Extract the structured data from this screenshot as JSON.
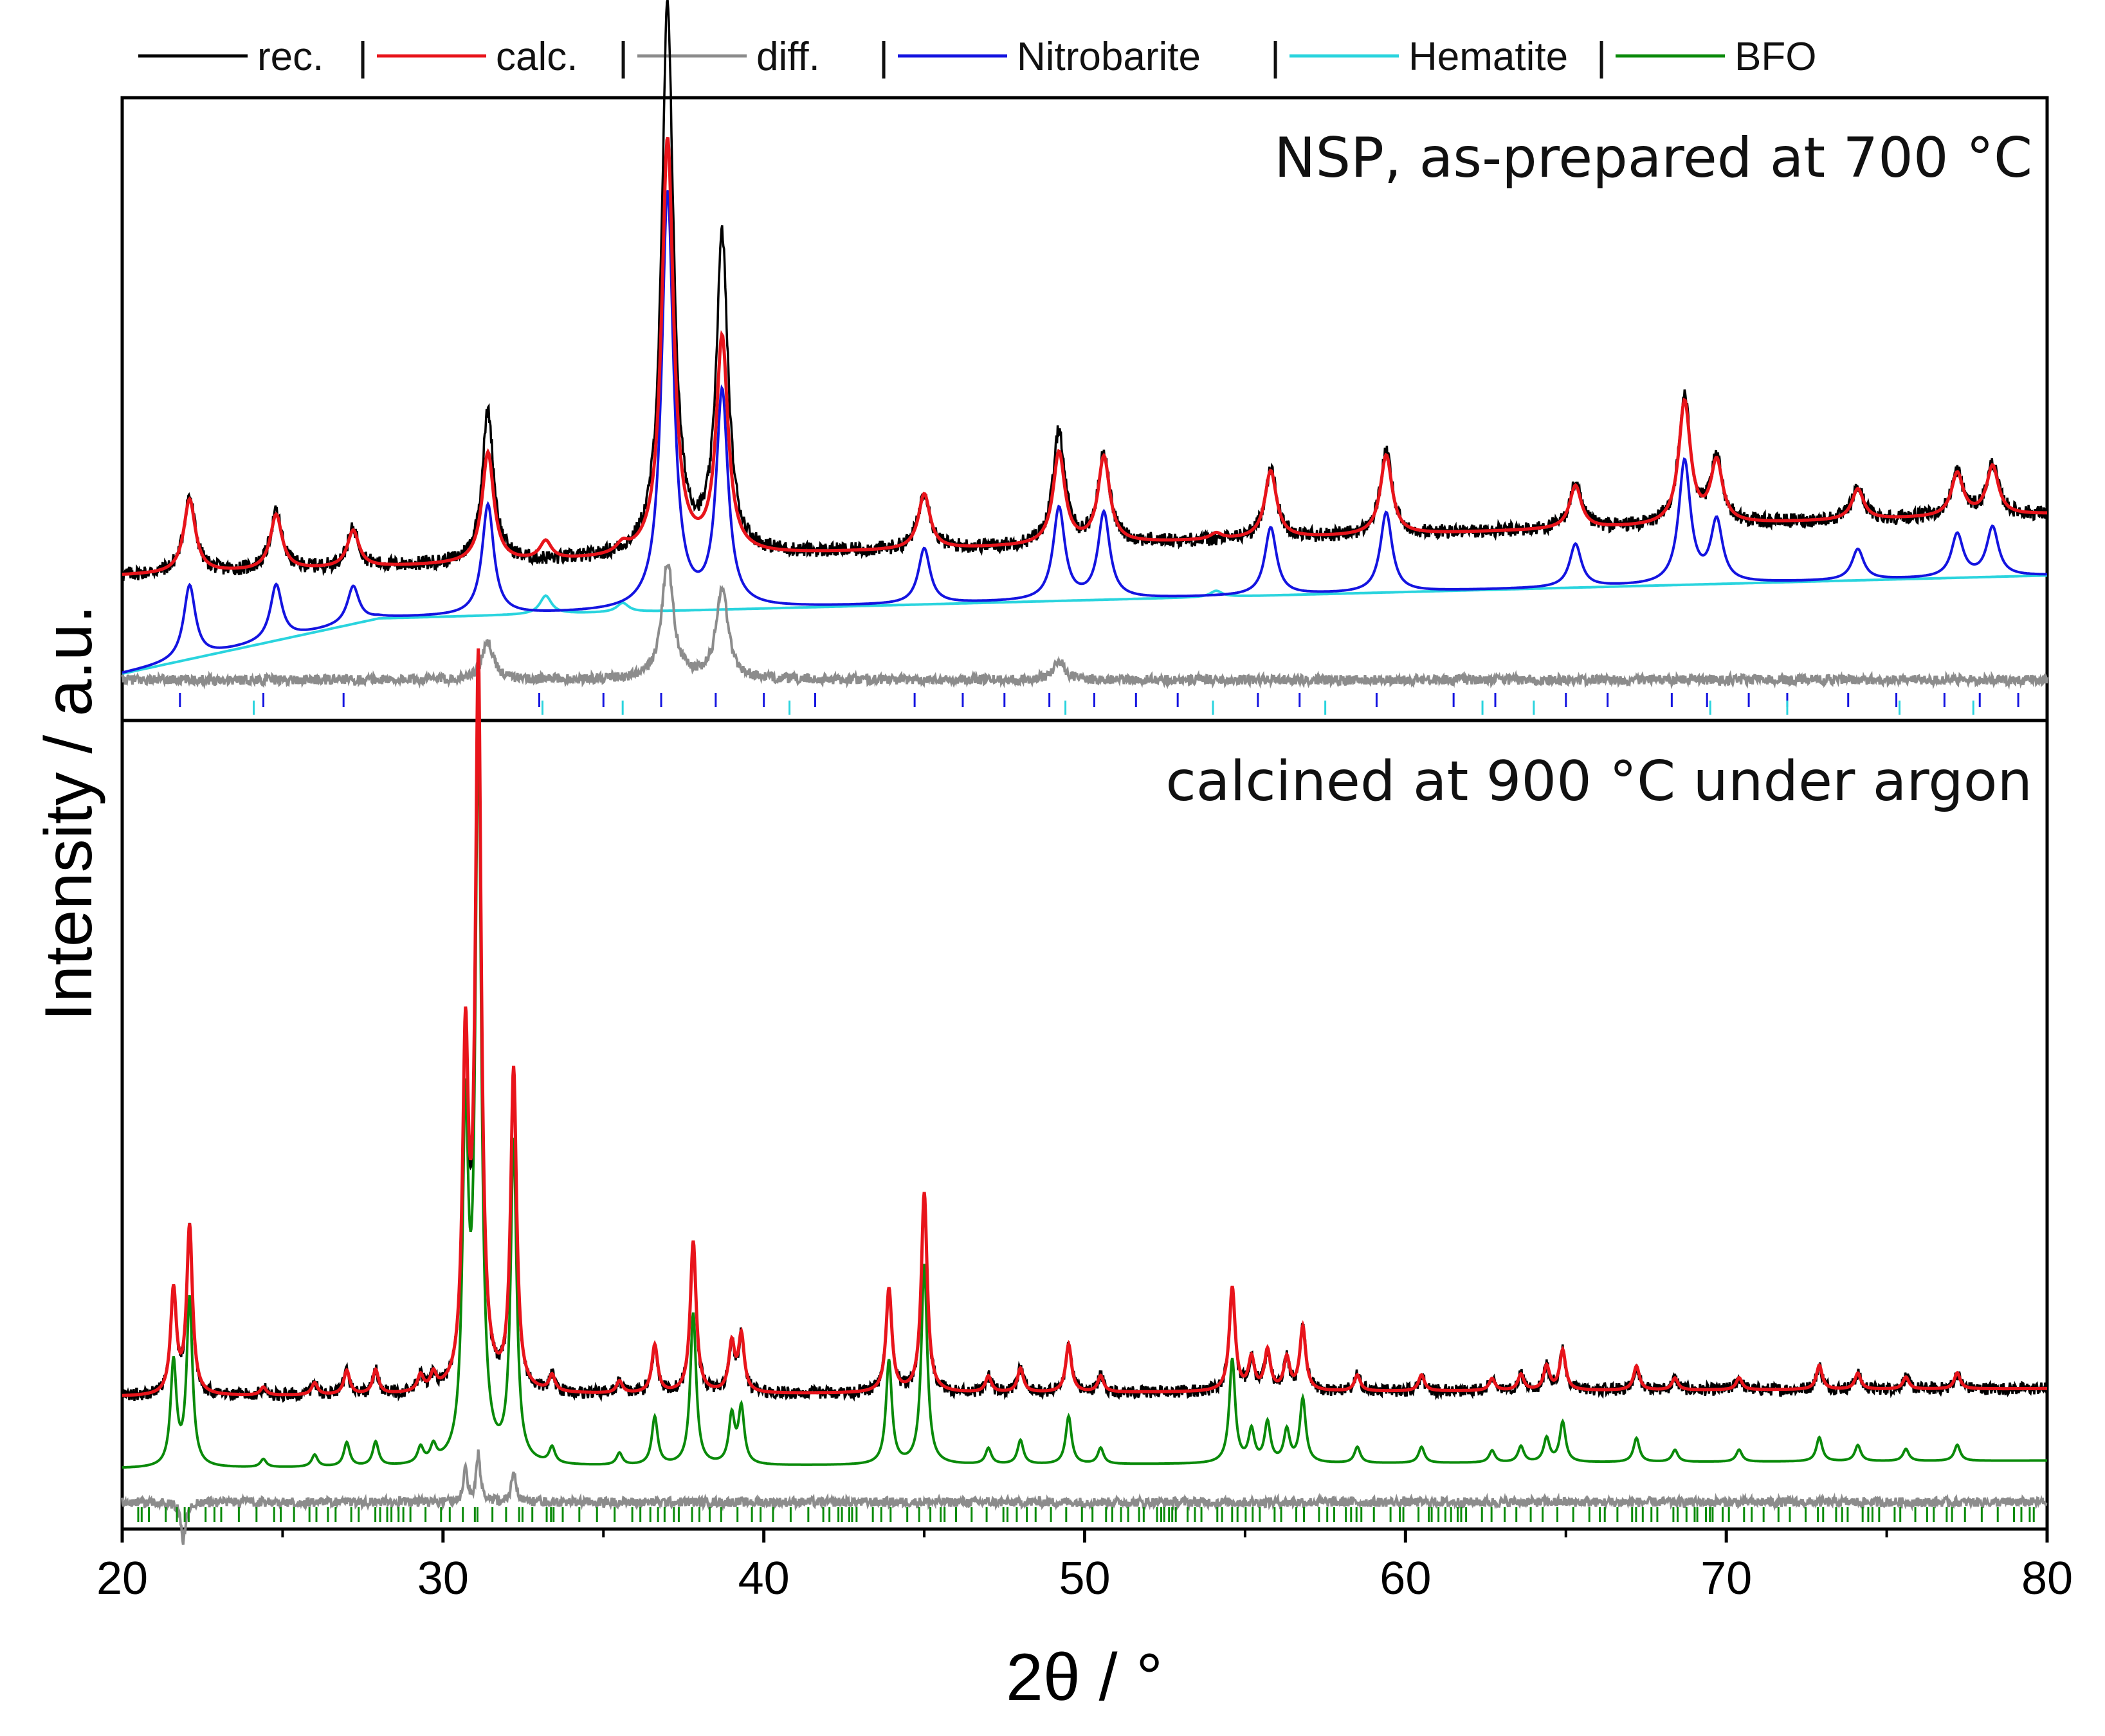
{
  "chart_data": {
    "type": "line",
    "xlabel": "2θ / °",
    "ylabel": "Intensity / a.u.",
    "xlim": [
      20,
      80
    ],
    "xticks": [
      20,
      30,
      40,
      50,
      60,
      70,
      80
    ],
    "legend": {
      "placement": "top",
      "separator": "|",
      "entries": [
        {
          "name": "rec.",
          "color": "#000000"
        },
        {
          "name": "calc.",
          "color": "#e8141b"
        },
        {
          "name": "diff.",
          "color": "#8c8c8c"
        },
        {
          "name": "Nitrobarite",
          "color": "#1414e0"
        },
        {
          "name": "Hematite",
          "color": "#2ad4de"
        },
        {
          "name": "BFO",
          "color": "#0a8a0a"
        }
      ]
    },
    "panels": [
      {
        "annotation": "NSP, as-prepared at 700 °C",
        "series": {
          "calc_baseline": [
            [
              20,
              0.23
            ],
            [
              80,
              0.33
            ]
          ],
          "rec_offset": 0.035,
          "phase_baseline": [
            [
              20,
              0.07
            ],
            [
              28,
              0.16
            ],
            [
              80,
              0.23
            ]
          ],
          "diff_level": 0.06,
          "nitrobarite_peaks": [
            {
              "x": 22.1,
              "h": 0.12
            },
            {
              "x": 24.8,
              "h": 0.09
            },
            {
              "x": 27.2,
              "h": 0.06
            },
            {
              "x": 31.4,
              "h": 0.18
            },
            {
              "x": 37.0,
              "h": 0.68
            },
            {
              "x": 38.7,
              "h": 0.35
            },
            {
              "x": 45.0,
              "h": 0.09
            },
            {
              "x": 49.2,
              "h": 0.15
            },
            {
              "x": 50.6,
              "h": 0.14
            },
            {
              "x": 55.8,
              "h": 0.11
            },
            {
              "x": 59.4,
              "h": 0.13
            },
            {
              "x": 65.3,
              "h": 0.07
            },
            {
              "x": 68.7,
              "h": 0.2
            },
            {
              "x": 69.7,
              "h": 0.1
            },
            {
              "x": 74.1,
              "h": 0.05
            },
            {
              "x": 77.2,
              "h": 0.07
            },
            {
              "x": 78.3,
              "h": 0.08
            }
          ],
          "hematite_peaks": [
            {
              "x": 33.2,
              "h": 0.03
            },
            {
              "x": 35.6,
              "h": 0.015
            },
            {
              "x": 54.1,
              "h": 0.01
            }
          ],
          "diff_peaks": [
            {
              "x": 31.4,
              "h": 0.06
            },
            {
              "x": 37.0,
              "h": 0.19
            },
            {
              "x": 38.7,
              "h": 0.15
            },
            {
              "x": 49.2,
              "h": 0.03
            }
          ],
          "nitrobarite_ticks": [
            21.8,
            24.4,
            26.9,
            31.1,
            33.0,
            35.0,
            36.8,
            38.5,
            40.0,
            41.6,
            44.7,
            46.2,
            47.5,
            48.9,
            50.3,
            51.6,
            52.9,
            55.4,
            56.7,
            59.1,
            61.5,
            62.8,
            65.0,
            66.3,
            68.3,
            69.4,
            70.7,
            71.9,
            73.8,
            75.3,
            76.8,
            77.9,
            79.1
          ],
          "hematite_ticks": [
            24.1,
            33.1,
            35.6,
            40.8,
            49.4,
            54.0,
            57.5,
            62.4,
            64.0,
            69.5,
            71.9,
            75.4,
            77.7
          ]
        }
      },
      {
        "annotation": "calcined at 900 °C under argon",
        "series": {
          "calc_baseline": [
            [
              20,
              0.16
            ],
            [
              80,
              0.17
            ]
          ],
          "rec_offset": 0.0,
          "phase_baseline": [
            [
              20,
              0.07
            ],
            [
              80,
              0.08
            ]
          ],
          "diff_level": 0.028,
          "bfo_peaks": [
            {
              "x": 21.6,
              "h": 0.13
            },
            {
              "x": 22.1,
              "h": 0.21
            },
            {
              "x": 24.4,
              "h": 0.01
            },
            {
              "x": 26.0,
              "h": 0.015
            },
            {
              "x": 27.0,
              "h": 0.03
            },
            {
              "x": 27.9,
              "h": 0.03
            },
            {
              "x": 29.3,
              "h": 0.02
            },
            {
              "x": 29.7,
              "h": 0.02
            },
            {
              "x": 30.7,
              "h": 0.42
            },
            {
              "x": 31.1,
              "h": 0.9
            },
            {
              "x": 32.2,
              "h": 0.4
            },
            {
              "x": 33.4,
              "h": 0.02
            },
            {
              "x": 35.5,
              "h": 0.015
            },
            {
              "x": 36.6,
              "h": 0.06
            },
            {
              "x": 37.8,
              "h": 0.19
            },
            {
              "x": 39.0,
              "h": 0.06
            },
            {
              "x": 39.3,
              "h": 0.07
            },
            {
              "x": 43.9,
              "h": 0.13
            },
            {
              "x": 45.0,
              "h": 0.25
            },
            {
              "x": 47.0,
              "h": 0.02
            },
            {
              "x": 48.0,
              "h": 0.03
            },
            {
              "x": 49.5,
              "h": 0.06
            },
            {
              "x": 50.5,
              "h": 0.02
            },
            {
              "x": 54.6,
              "h": 0.13
            },
            {
              "x": 55.2,
              "h": 0.04
            },
            {
              "x": 55.7,
              "h": 0.05
            },
            {
              "x": 56.3,
              "h": 0.04
            },
            {
              "x": 56.8,
              "h": 0.08
            },
            {
              "x": 58.5,
              "h": 0.02
            },
            {
              "x": 60.5,
              "h": 0.02
            },
            {
              "x": 62.7,
              "h": 0.015
            },
            {
              "x": 63.6,
              "h": 0.02
            },
            {
              "x": 64.4,
              "h": 0.03
            },
            {
              "x": 64.9,
              "h": 0.05
            },
            {
              "x": 67.2,
              "h": 0.03
            },
            {
              "x": 68.4,
              "h": 0.015
            },
            {
              "x": 70.4,
              "h": 0.015
            },
            {
              "x": 72.9,
              "h": 0.03
            },
            {
              "x": 74.1,
              "h": 0.02
            },
            {
              "x": 75.6,
              "h": 0.015
            },
            {
              "x": 77.2,
              "h": 0.02
            }
          ],
          "diff_peaks": [
            {
              "x": 21.9,
              "h": -0.05
            },
            {
              "x": 30.7,
              "h": 0.04
            },
            {
              "x": 31.1,
              "h": 0.06
            },
            {
              "x": 32.2,
              "h": 0.04
            }
          ],
          "bfo_ticks_density": "dense reflections from 20.5° to 80°"
        }
      }
    ]
  }
}
